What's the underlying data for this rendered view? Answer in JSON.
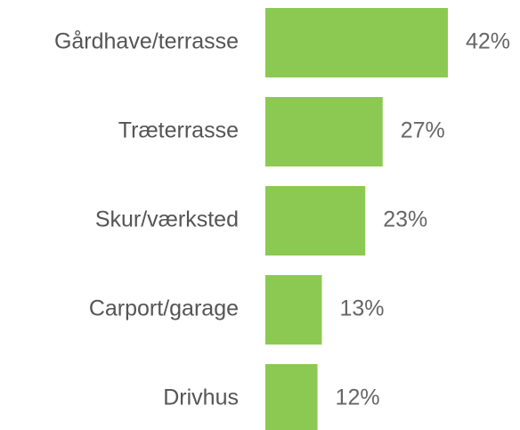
{
  "chart_data": {
    "type": "bar",
    "orientation": "horizontal",
    "categories": [
      "Gårdhave/terrasse",
      "Træterrasse",
      "Skur/værksted",
      "Carport/garage",
      "Drivhus"
    ],
    "values": [
      42,
      27,
      23,
      13,
      12
    ],
    "value_labels": [
      "42%",
      "27%",
      "23%",
      "13%",
      "12%"
    ],
    "color": "#8bc953"
  }
}
